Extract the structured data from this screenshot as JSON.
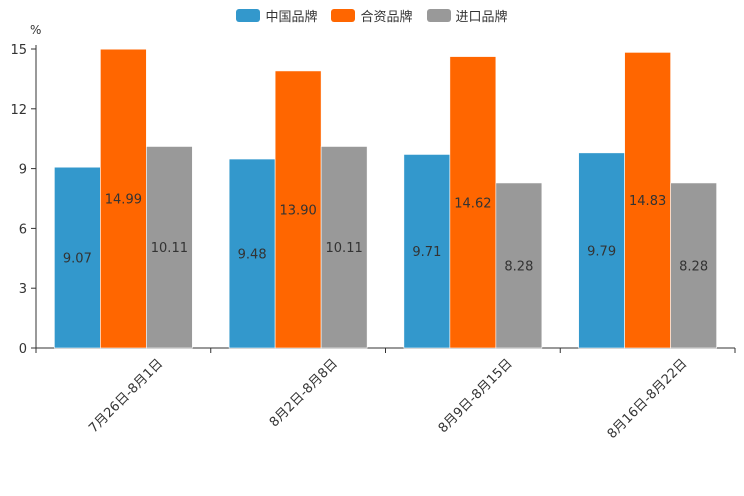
{
  "chart_data": {
    "type": "bar",
    "title": "",
    "xlabel": "",
    "ylabel": "%",
    "ylim": [
      0,
      15
    ],
    "yticks": [
      0,
      3,
      6,
      9,
      12,
      15
    ],
    "categories": [
      "7月26日-8月1日",
      "8月2日-8月8日",
      "8月9日-8月15日",
      "8月16日-8月22日"
    ],
    "series": [
      {
        "name": "中国品牌",
        "color": "#3398cc",
        "values": [
          9.07,
          9.48,
          9.71,
          9.79
        ],
        "labels": [
          "9.07",
          "9.48",
          "9.71",
          "9.79"
        ]
      },
      {
        "name": "合资品牌",
        "color": "#ff6600",
        "values": [
          14.99,
          13.9,
          14.62,
          14.83
        ],
        "labels": [
          "14.99",
          "13.90",
          "14.62",
          "14.83"
        ]
      },
      {
        "name": "进口品牌",
        "color": "#999999",
        "values": [
          10.11,
          10.11,
          8.28,
          8.28
        ],
        "labels": [
          "10.11",
          "10.11",
          "8.28",
          "8.28"
        ]
      }
    ],
    "legend_position": "top-center",
    "grid": false
  }
}
